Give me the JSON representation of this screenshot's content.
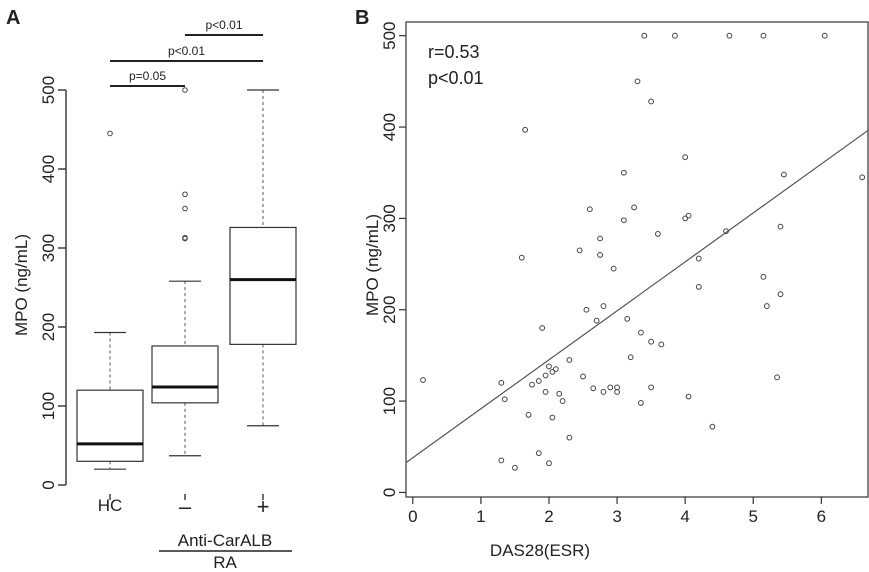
{
  "panel_a": {
    "letter": "A",
    "ylabel": "MPO (ng/mL)",
    "group_label": "Anti-CarALB",
    "bracket_label": "RA",
    "comparisons": [
      {
        "from": 0,
        "to": 1,
        "label": "p=0.05"
      },
      {
        "from": 0,
        "to": 2,
        "label": "p<0.01"
      },
      {
        "from": 1,
        "to": 2,
        "label": "p<0.01"
      }
    ]
  },
  "panel_b": {
    "letter": "B",
    "r_text": "r=0.53",
    "p_text": "p<0.01",
    "xlabel": "DAS28(ESR)",
    "ylabel": "MPO (ng/mL)"
  },
  "chart_data": [
    {
      "type": "box",
      "title": "",
      "xlabel": "",
      "ylabel": "MPO (ng/mL)",
      "ylim": [
        0,
        520
      ],
      "yticks": [
        0,
        100,
        200,
        300,
        400,
        500
      ],
      "categories": [
        "HC",
        "–",
        "+"
      ],
      "boxes": [
        {
          "category": "HC",
          "whisker_low": 20,
          "q1": 30,
          "median": 52,
          "q3": 120,
          "whisker_high": 193,
          "outliers": [
            445
          ]
        },
        {
          "category": "–",
          "whisker_low": 37,
          "q1": 104,
          "median": 124,
          "q3": 176,
          "whisker_high": 258,
          "outliers": [
            312,
            313,
            350,
            368,
            500
          ]
        },
        {
          "category": "+",
          "whisker_low": 75,
          "q1": 178,
          "median": 260,
          "q3": 326,
          "whisker_high": 500,
          "outliers": []
        }
      ]
    },
    {
      "type": "scatter",
      "title": "",
      "xlabel": "DAS28(ESR)",
      "ylabel": "MPO (ng/mL)",
      "xlim": [
        -0.1,
        6.7
      ],
      "ylim": [
        -5,
        515
      ],
      "xticks": [
        0,
        1,
        2,
        3,
        4,
        5,
        6
      ],
      "yticks": [
        0,
        100,
        200,
        300,
        400,
        500
      ],
      "fit_line": {
        "slope": 53.6,
        "intercept": 38
      },
      "points": [
        [
          0.15,
          123
        ],
        [
          1.3,
          120
        ],
        [
          1.3,
          35
        ],
        [
          1.35,
          102
        ],
        [
          1.5,
          27
        ],
        [
          1.6,
          257
        ],
        [
          1.65,
          397
        ],
        [
          1.7,
          85
        ],
        [
          1.75,
          118
        ],
        [
          1.85,
          43
        ],
        [
          1.85,
          122
        ],
        [
          1.9,
          180
        ],
        [
          1.95,
          128
        ],
        [
          1.95,
          110
        ],
        [
          2.0,
          32
        ],
        [
          2.0,
          138
        ],
        [
          2.05,
          82
        ],
        [
          2.05,
          132
        ],
        [
          2.1,
          135
        ],
        [
          2.15,
          108
        ],
        [
          2.2,
          100
        ],
        [
          2.3,
          60
        ],
        [
          2.3,
          145
        ],
        [
          2.45,
          265
        ],
        [
          2.5,
          127
        ],
        [
          2.55,
          200
        ],
        [
          2.6,
          310
        ],
        [
          2.65,
          114
        ],
        [
          2.7,
          188
        ],
        [
          2.75,
          278
        ],
        [
          2.75,
          260
        ],
        [
          2.8,
          204
        ],
        [
          2.8,
          110
        ],
        [
          2.9,
          115
        ],
        [
          2.95,
          245
        ],
        [
          3.0,
          110
        ],
        [
          3.0,
          115
        ],
        [
          3.1,
          298
        ],
        [
          3.1,
          350
        ],
        [
          3.15,
          190
        ],
        [
          3.2,
          148
        ],
        [
          3.25,
          312
        ],
        [
          3.3,
          450
        ],
        [
          3.35,
          98
        ],
        [
          3.35,
          175
        ],
        [
          3.4,
          500
        ],
        [
          3.5,
          428
        ],
        [
          3.5,
          115
        ],
        [
          3.5,
          165
        ],
        [
          3.6,
          283
        ],
        [
          3.65,
          162
        ],
        [
          3.85,
          500
        ],
        [
          4.0,
          367
        ],
        [
          4.0,
          300
        ],
        [
          4.05,
          105
        ],
        [
          4.05,
          303
        ],
        [
          4.2,
          256
        ],
        [
          4.2,
          225
        ],
        [
          4.4,
          72
        ],
        [
          4.65,
          500
        ],
        [
          4.6,
          286
        ],
        [
          5.15,
          500
        ],
        [
          5.15,
          236
        ],
        [
          5.2,
          204
        ],
        [
          5.35,
          126
        ],
        [
          5.4,
          291
        ],
        [
          5.4,
          217
        ],
        [
          5.45,
          348
        ],
        [
          6.05,
          500
        ],
        [
          6.6,
          345
        ]
      ]
    }
  ]
}
